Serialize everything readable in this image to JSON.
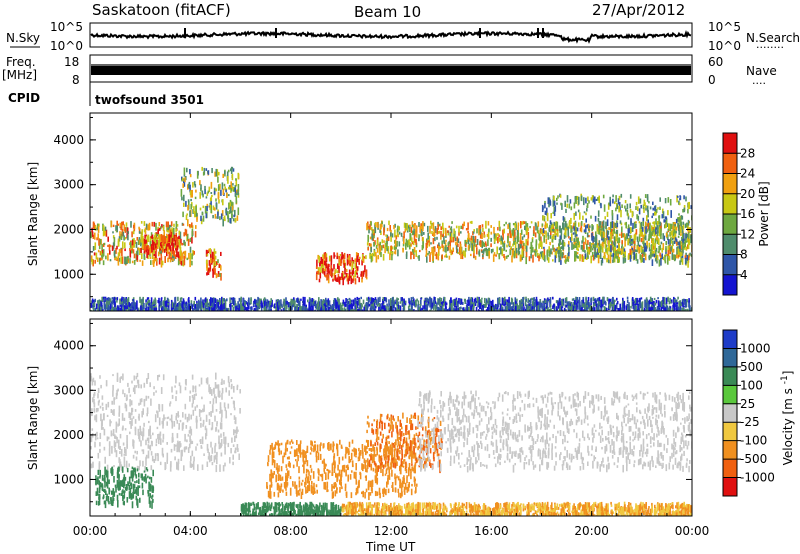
{
  "header": {
    "station": "Saskatoon (fitACF)",
    "beam": "Beam 10",
    "date": "27/Apr/2012"
  },
  "sky_panel": {
    "left_label": "N.Sky",
    "left_ticks": [
      "10^5",
      "10^0"
    ],
    "right_ticks": [
      "10^5",
      "10^0"
    ],
    "right_label": "N.Search",
    "right_dots": "........"
  },
  "freq_panel": {
    "label_line1": "Freq.",
    "label_line2": "[MHz]",
    "left_ticks": [
      "18",
      "8"
    ],
    "right_ticks": [
      "60",
      "0"
    ],
    "right_label": "Nave",
    "right_dots": "...."
  },
  "cpid": {
    "label": "CPID",
    "value": "twofsound 3501"
  },
  "axes": {
    "ylabel": "Slant Range [km]",
    "yticks": [
      1000,
      2000,
      3000,
      4000
    ],
    "xlabel": "Time UT",
    "xticks": [
      "00:00",
      "04:00",
      "08:00",
      "12:00",
      "16:00",
      "20:00",
      "00:00"
    ],
    "xlim_hours": [
      0,
      24
    ],
    "ylim_km": [
      180,
      4600
    ]
  },
  "chart_data": [
    {
      "type": "heatmap",
      "title": "",
      "xlabel": "",
      "ylabel": "Slant Range [km]",
      "colorbar_label": "Power [dB]",
      "colorbar_ticks": [
        4,
        8,
        12,
        16,
        20,
        24,
        28
      ],
      "colorbar_range": [
        0,
        32
      ],
      "colors": [
        "#1414d0",
        "#2f56a8",
        "#4f8c6c",
        "#6ea840",
        "#c8c814",
        "#f0a010",
        "#f06010",
        "#e01010"
      ],
      "regions": [
        {
          "t0": 0.0,
          "t1": 4.2,
          "r0": 1300,
          "r1": 2200,
          "value": 20
        },
        {
          "t0": 2.0,
          "t1": 3.6,
          "r0": 1500,
          "r1": 1900,
          "value": 28
        },
        {
          "t0": 3.6,
          "t1": 5.9,
          "r0": 2200,
          "r1": 3400,
          "value": 14
        },
        {
          "t0": 4.6,
          "t1": 5.2,
          "r0": 1000,
          "r1": 1600,
          "value": 24
        },
        {
          "t0": 9.0,
          "t1": 11.0,
          "r0": 900,
          "r1": 1500,
          "value": 30
        },
        {
          "t0": 11.0,
          "t1": 24.0,
          "r0": 1400,
          "r1": 2200,
          "value": 18
        },
        {
          "t0": 18.0,
          "t1": 24.0,
          "r0": 1300,
          "r1": 2800,
          "value": 12
        },
        {
          "t0": 0.0,
          "t1": 24.0,
          "r0": 180,
          "r1": 500,
          "value": 6
        }
      ]
    },
    {
      "type": "heatmap",
      "title": "",
      "xlabel": "Time UT",
      "ylabel": "Slant Range [km]",
      "colorbar_label": "Velocity [m s^-1]",
      "colorbar_ticks": [
        1000,
        500,
        100,
        25,
        -25,
        -100,
        -500,
        -1000
      ],
      "colors": [
        "#1e3cc8",
        "#2f6898",
        "#3a8a56",
        "#5ac83c",
        "#c8c8c8",
        "#f0c840",
        "#f09020",
        "#f06010",
        "#e01010"
      ],
      "regions": [
        {
          "t0": 0.0,
          "t1": 6.0,
          "r0": 1300,
          "r1": 3400,
          "value": 0
        },
        {
          "t0": 0.2,
          "t1": 2.5,
          "r0": 500,
          "r1": 1300,
          "value": 300
        },
        {
          "t0": 7.0,
          "t1": 13.0,
          "r0": 700,
          "r1": 1900,
          "value": -350
        },
        {
          "t0": 11.0,
          "t1": 14.0,
          "r0": 1300,
          "r1": 2500,
          "value": -500
        },
        {
          "t0": 13.0,
          "t1": 24.0,
          "r0": 1300,
          "r1": 3000,
          "value": 0
        },
        {
          "t0": 6.0,
          "t1": 10.0,
          "r0": 180,
          "r1": 500,
          "value": 150
        },
        {
          "t0": 10.0,
          "t1": 24.0,
          "r0": 180,
          "r1": 500,
          "value": -100
        }
      ]
    }
  ]
}
